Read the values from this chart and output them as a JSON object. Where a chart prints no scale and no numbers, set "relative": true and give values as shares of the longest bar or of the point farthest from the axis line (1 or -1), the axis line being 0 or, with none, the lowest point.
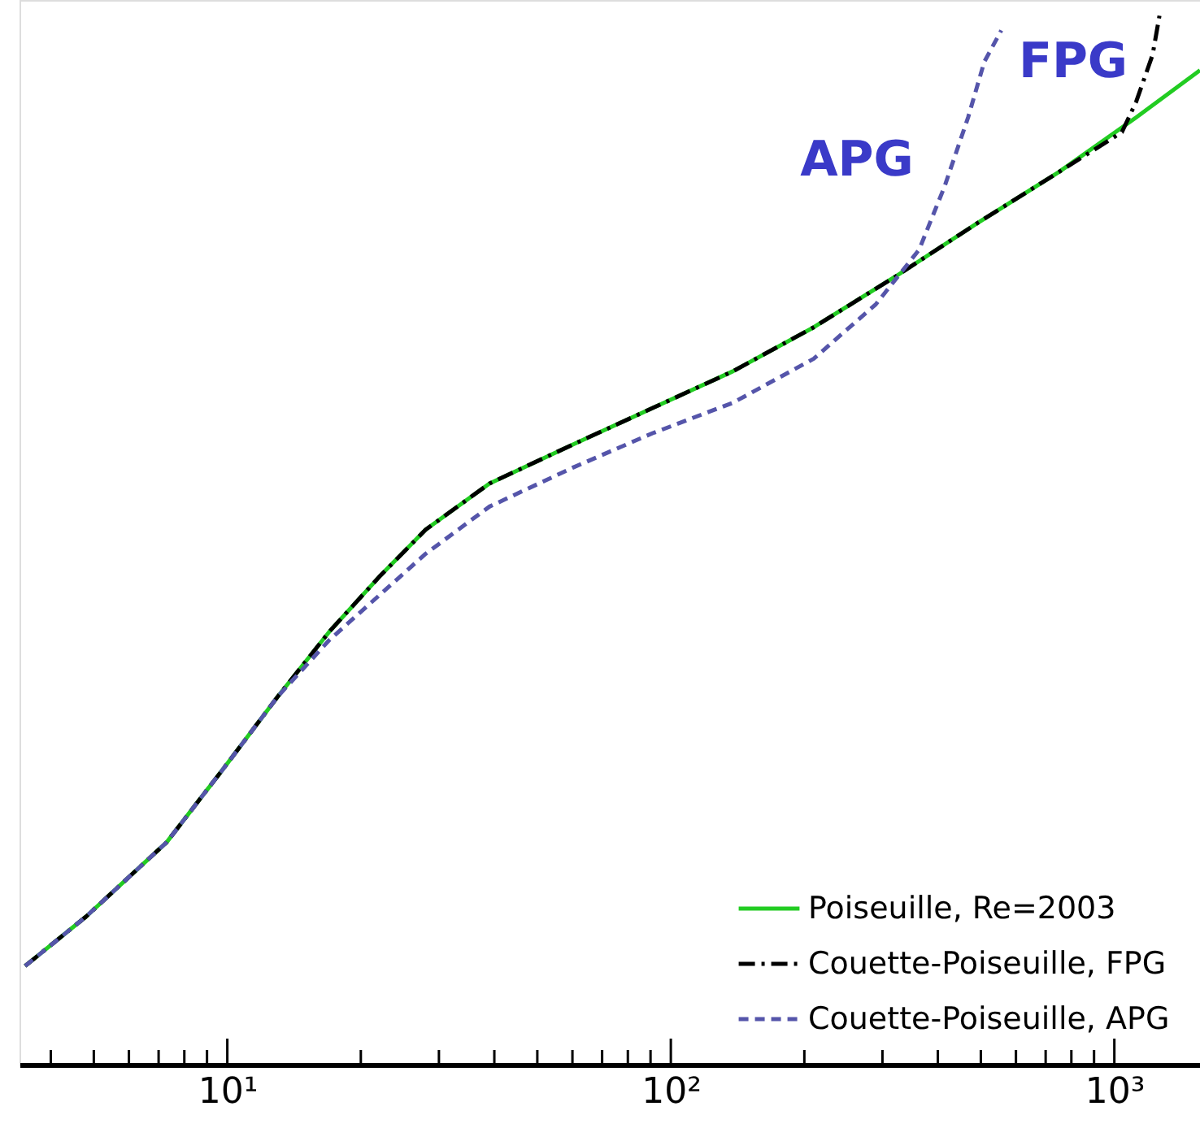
{
  "chart_data": {
    "type": "line",
    "relative": true,
    "log": "x",
    "xlim": [
      3.4,
      1560
    ],
    "xticks": [
      {
        "value": 4,
        "label": null
      },
      {
        "value": 5,
        "label": null
      },
      {
        "value": 6,
        "label": null
      },
      {
        "value": 7,
        "label": null
      },
      {
        "value": 8,
        "label": null
      },
      {
        "value": 9,
        "label": null
      },
      {
        "value": 10,
        "label": "10¹"
      },
      {
        "value": 20,
        "label": null
      },
      {
        "value": 30,
        "label": null
      },
      {
        "value": 40,
        "label": null
      },
      {
        "value": 50,
        "label": null
      },
      {
        "value": 60,
        "label": null
      },
      {
        "value": 70,
        "label": null
      },
      {
        "value": 80,
        "label": null
      },
      {
        "value": 90,
        "label": null
      },
      {
        "value": 100,
        "label": "10²"
      },
      {
        "value": 200,
        "label": null
      },
      {
        "value": 300,
        "label": null
      },
      {
        "value": 400,
        "label": null
      },
      {
        "value": 500,
        "label": null
      },
      {
        "value": 600,
        "label": null
      },
      {
        "value": 700,
        "label": null
      },
      {
        "value": 800,
        "label": null
      },
      {
        "value": 900,
        "label": null
      },
      {
        "value": 1000,
        "label": "10³"
      }
    ],
    "tick_labels": "x",
    "grid": false,
    "legend": "bottom right",
    "series": [
      {
        "name": "Poiseuille, Re=2003",
        "color": "#22cc22",
        "line_style": "solid",
        "x": [
          3.5,
          4.8,
          7.3,
          10,
          13,
          17,
          22,
          28,
          39,
          60,
          91,
          138,
          210,
          320,
          490,
          750,
          1120,
          1560
        ],
        "values": [
          0.094,
          0.141,
          0.212,
          0.287,
          0.351,
          0.413,
          0.465,
          0.51,
          0.554,
          0.591,
          0.626,
          0.661,
          0.703,
          0.751,
          0.802,
          0.851,
          0.903,
          0.948
        ]
      },
      {
        "name": "Couette-Poiseuille, FPG",
        "color": "#000000",
        "line_style": "dashdot",
        "x": [
          3.5,
          4.8,
          7.3,
          10,
          13,
          17,
          22,
          28,
          39,
          60,
          91,
          138,
          210,
          320,
          490,
          750,
          1040,
          1120,
          1220,
          1264
        ],
        "values": [
          0.094,
          0.141,
          0.212,
          0.287,
          0.351,
          0.413,
          0.465,
          0.51,
          0.554,
          0.591,
          0.626,
          0.661,
          0.703,
          0.751,
          0.802,
          0.851,
          0.889,
          0.918,
          0.963,
          1
        ]
      },
      {
        "name": "Couette-Poiseuille, APG",
        "color": "#5555aa",
        "line_style": "dashed",
        "x": [
          3.5,
          4.8,
          7.3,
          10,
          13,
          17,
          28,
          39,
          60,
          91,
          138,
          210,
          290,
          363,
          414,
          468,
          509,
          556
        ],
        "values": [
          0.094,
          0.141,
          0.212,
          0.287,
          0.351,
          0.405,
          0.487,
          0.532,
          0.569,
          0.602,
          0.631,
          0.673,
          0.725,
          0.777,
          0.837,
          0.903,
          0.956,
          0.986
        ]
      }
    ],
    "annotations": [
      "APG",
      "FPG"
    ]
  }
}
